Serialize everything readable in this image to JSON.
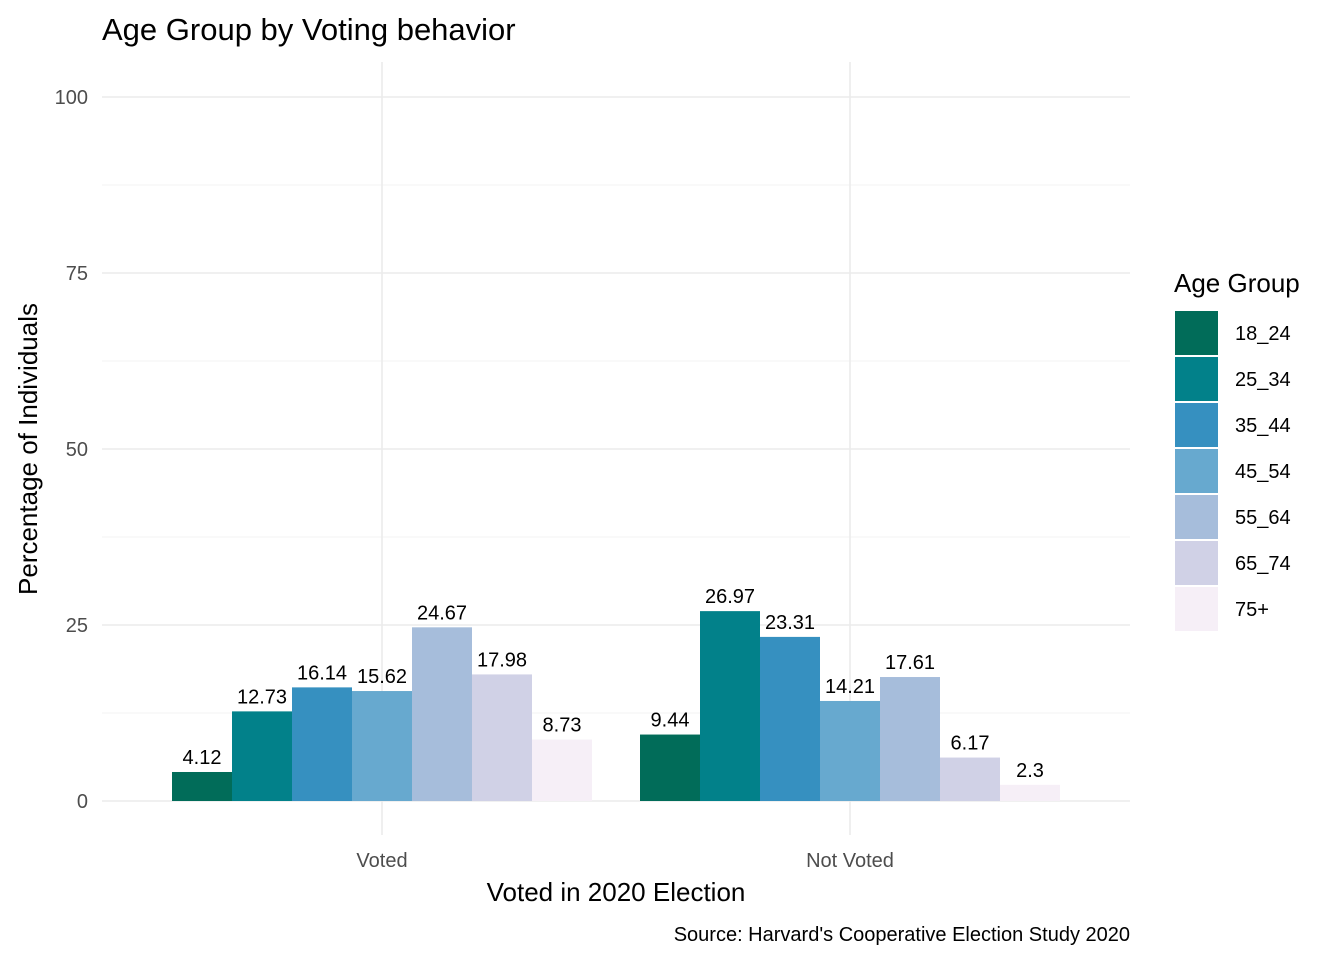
{
  "chart_data": {
    "type": "bar",
    "title": "Age Group by Voting behavior",
    "xlabel": "Voted in 2020 Election",
    "ylabel": "Percentage of Individuals",
    "caption": "Source: Harvard's Cooperative Election Study 2020",
    "categories": [
      "Voted",
      "Not Voted"
    ],
    "ylim": [
      0,
      100
    ],
    "yticks": [
      0,
      25,
      50,
      75,
      100
    ],
    "grid": true,
    "legend": {
      "title": "Age Group",
      "position": "right"
    },
    "series": [
      {
        "name": "18_24",
        "color": "#016c59",
        "values": [
          4.12,
          9.44
        ],
        "labels": [
          "4.12",
          "9.44"
        ]
      },
      {
        "name": "25_34",
        "color": "#02818a",
        "values": [
          12.73,
          26.97
        ],
        "labels": [
          "12.73",
          "26.97"
        ]
      },
      {
        "name": "35_44",
        "color": "#3690c0",
        "values": [
          16.14,
          23.31
        ],
        "labels": [
          "16.14",
          "23.31"
        ]
      },
      {
        "name": "45_54",
        "color": "#67a9cf",
        "values": [
          15.62,
          14.21
        ],
        "labels": [
          "15.62",
          "14.21"
        ]
      },
      {
        "name": "55_64",
        "color": "#a6bddb",
        "values": [
          24.67,
          17.61
        ],
        "labels": [
          "24.67",
          "17.61"
        ]
      },
      {
        "name": "65_74",
        "color": "#d0d1e6",
        "values": [
          17.98,
          6.17
        ],
        "labels": [
          "17.98",
          "6.17"
        ]
      },
      {
        "name": "75+",
        "color": "#f6eff7",
        "values": [
          8.73,
          2.3
        ],
        "labels": [
          "8.73",
          "2.3"
        ]
      }
    ]
  }
}
